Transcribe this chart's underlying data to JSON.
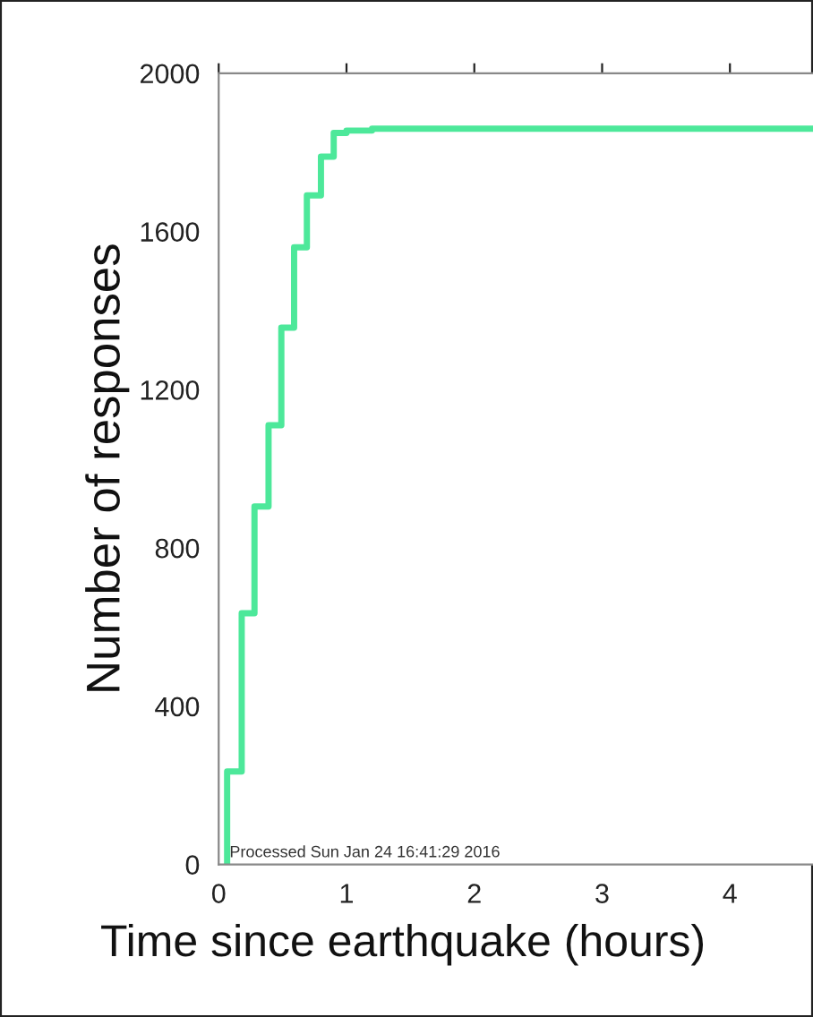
{
  "chart_data": {
    "type": "step",
    "xlabel": "Time since earthquake (hours)",
    "ylabel": "Number of responses",
    "annotations": [
      "Processed Sun Jan 24 16:41:29 2016"
    ],
    "series": [
      {
        "color": "#4de89a",
        "x": [
          0.066,
          0.066,
          0.18,
          0.28,
          0.39,
          0.49,
          0.59,
          0.69,
          0.8,
          0.9,
          1.0,
          1.2,
          4.65
        ],
        "values": [
          0,
          235,
          635,
          905,
          1110,
          1357,
          1560,
          1691,
          1789,
          1849,
          1855,
          1860,
          1860
        ]
      }
    ],
    "xlim": [
      0,
      4.65
    ],
    "xticks": [
      0,
      1,
      2,
      3,
      4
    ],
    "ylim": [
      0,
      2000
    ],
    "yticks": [
      0,
      400,
      800,
      1200,
      1600,
      2000
    ],
    "grid": false,
    "legend": false,
    "marker": "none",
    "line_style": "solid"
  }
}
